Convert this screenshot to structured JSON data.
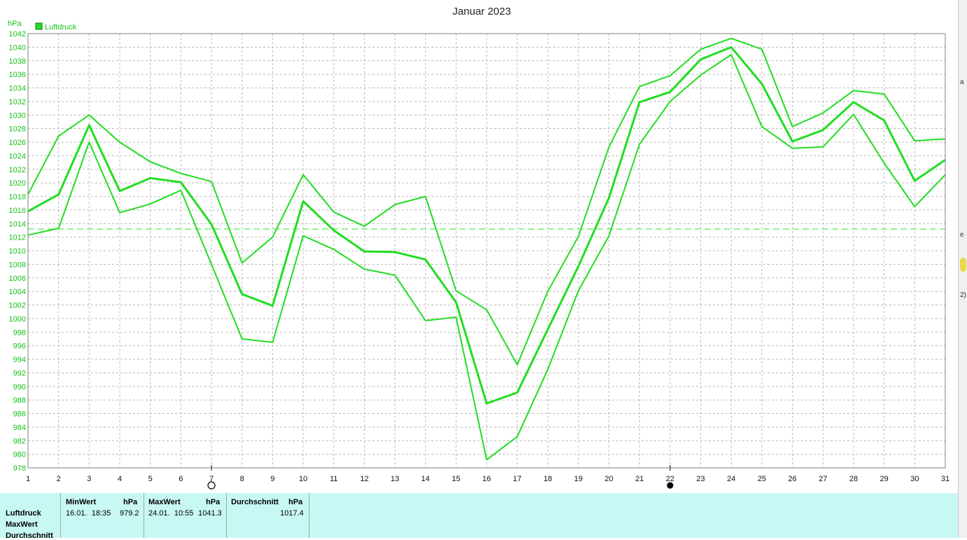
{
  "chart_data": {
    "type": "line",
    "title": "Januar 2023",
    "ylabel": "hPa",
    "legend": {
      "label": "Luftdruck",
      "color": "#22dd22",
      "placement": "top-left"
    },
    "ylim": [
      978,
      1042
    ],
    "ytick_step": 2,
    "grid": true,
    "x": [
      1,
      2,
      3,
      4,
      5,
      6,
      7,
      8,
      9,
      10,
      11,
      12,
      13,
      14,
      15,
      16,
      17,
      18,
      19,
      20,
      21,
      22,
      23,
      24,
      25,
      26,
      27,
      28,
      29,
      30,
      31
    ],
    "series": [
      {
        "role": "max",
        "values": [
          1018.3,
          1026.9,
          1030.0,
          1026.0,
          1023.1,
          1021.4,
          1020.2,
          1008.2,
          1012.0,
          1021.2,
          1015.7,
          1013.6,
          1016.8,
          1018.0,
          1004.1,
          1001.3,
          993.2,
          1004.0,
          1012.1,
          1025.3,
          1034.2,
          1035.8,
          1039.7,
          1041.3,
          1039.7,
          1028.3,
          1030.3,
          1033.6,
          1033.1,
          1026.2,
          1026.5
        ]
      },
      {
        "role": "mean",
        "values": [
          1015.8,
          1018.3,
          1028.5,
          1018.8,
          1020.7,
          1020.1,
          1013.9,
          1003.6,
          1001.9,
          1017.3,
          1013.0,
          1009.9,
          1009.8,
          1008.7,
          1002.4,
          987.5,
          989.1,
          998.4,
          1007.7,
          1017.8,
          1031.9,
          1033.4,
          1038.2,
          1040.0,
          1034.6,
          1026.1,
          1027.8,
          1031.9,
          1029.2,
          1020.3,
          1023.4
        ]
      },
      {
        "role": "min",
        "values": [
          1012.3,
          1013.3,
          1026.0,
          1015.6,
          1016.9,
          1018.9,
          1008.0,
          997.0,
          996.5,
          1012.2,
          1010.2,
          1007.3,
          1006.4,
          999.7,
          1000.2,
          979.2,
          982.6,
          992.5,
          1004.1,
          1012.2,
          1025.7,
          1032.0,
          1035.9,
          1038.9,
          1028.3,
          1025.1,
          1025.3,
          1030.1,
          1022.9,
          1016.5,
          1021.2
        ]
      }
    ],
    "reference_line": 1013.2,
    "moon_markers": [
      {
        "day": 7,
        "phase": "full-moon-icon"
      },
      {
        "day": 22,
        "phase": "new-moon-icon"
      }
    ]
  },
  "stats": {
    "row_labels": [
      "Luftdruck",
      "MaxWert",
      "Durchschnitt"
    ],
    "min": {
      "header": "MinWert",
      "unit": "hPa",
      "time": "16.01.  18:35",
      "value": "979.2"
    },
    "max": {
      "header": "MaxWert",
      "unit": "hPa",
      "time": "24.01.  10:55",
      "value": "1041.3"
    },
    "avg": {
      "header": "Durchschnitt",
      "unit": "hPa",
      "value": "1017.4"
    }
  }
}
